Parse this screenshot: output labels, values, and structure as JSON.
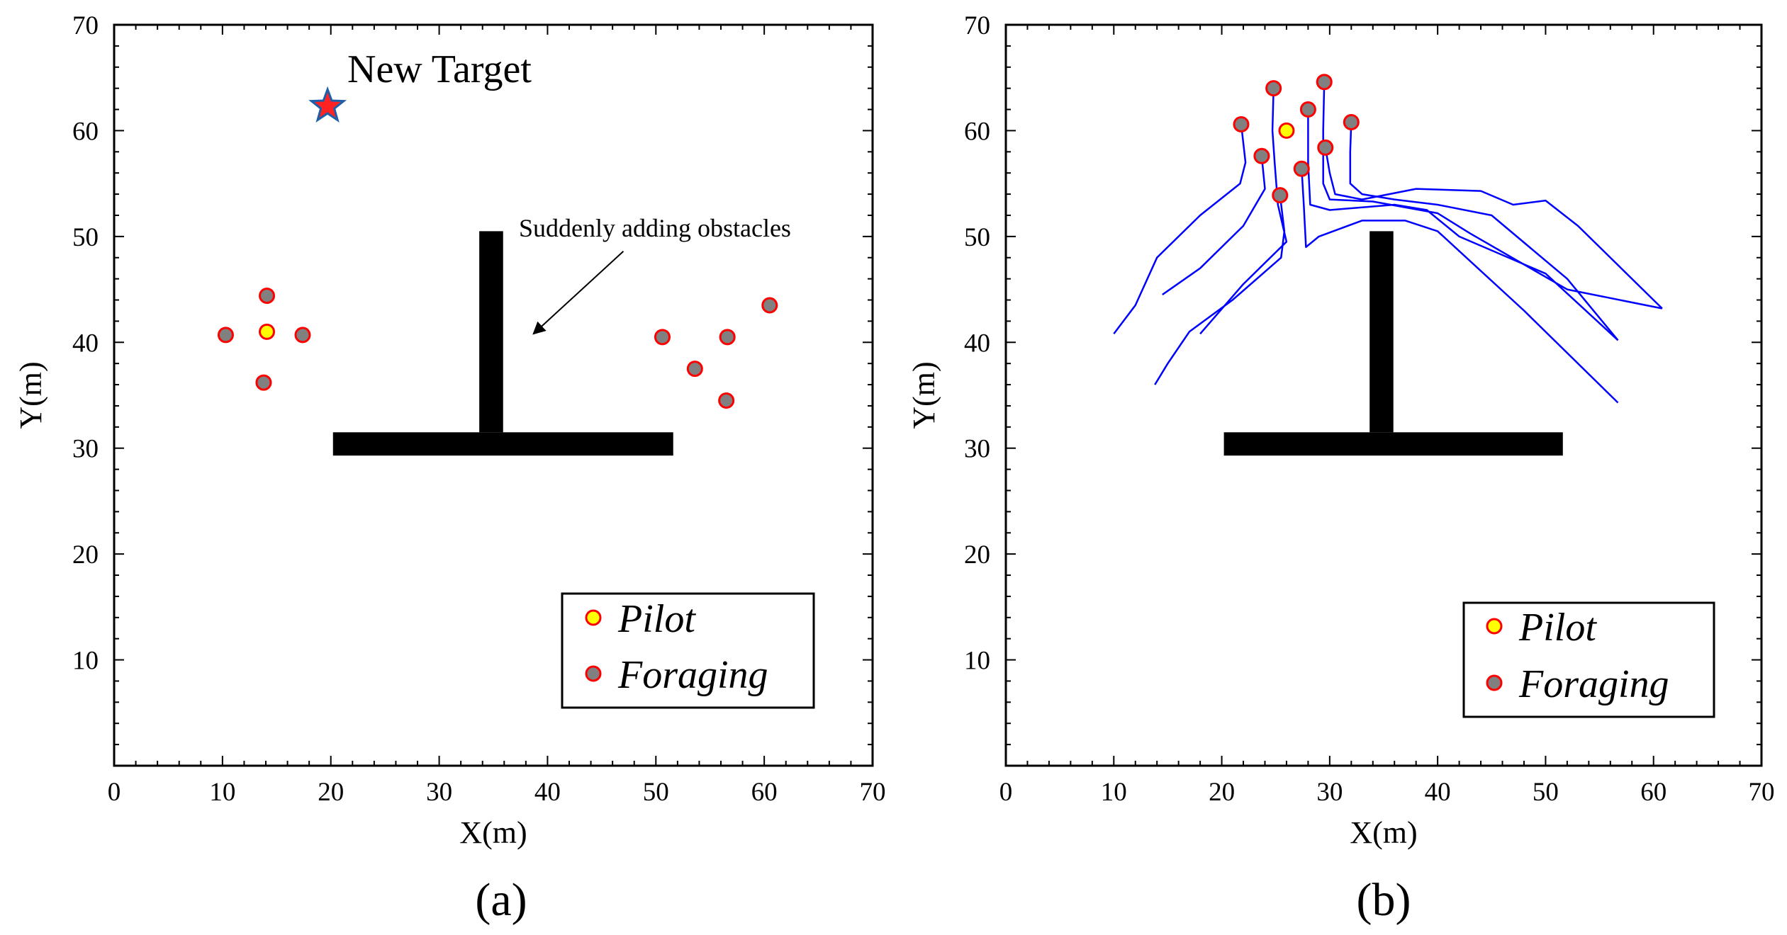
{
  "colors": {
    "pilot_fill": "#ffff00",
    "foraging_fill": "#808080",
    "marker_edge": "#ff0000",
    "path": "#0000ff",
    "obstacle": "#000000",
    "star_fill": "#ff2222",
    "star_edge": "#1f5fa8"
  },
  "chart_data": [
    {
      "type": "scatter",
      "panel_label": "(a)",
      "xlabel": "X(m)",
      "ylabel": "Y(m)",
      "xlim": [
        0,
        70
      ],
      "ylim": [
        0,
        70
      ],
      "xticks": [
        0,
        10,
        20,
        30,
        40,
        50,
        60,
        70
      ],
      "yticks": [
        10,
        20,
        30,
        40,
        50,
        60,
        70
      ],
      "legend": {
        "placement": "bottom-right",
        "entries": [
          "Pilot",
          "Foraging"
        ]
      },
      "obstacles": [
        {
          "name": "vertical-bar",
          "x0": 33.7,
          "x1": 35.9,
          "y0": 31.5,
          "y1": 50.5
        },
        {
          "name": "horizontal-bar",
          "x0": 20.2,
          "x1": 51.6,
          "y0": 29.3,
          "y1": 31.5
        }
      ],
      "target": {
        "label": "New Target",
        "x": 19.7,
        "y": 62.3
      },
      "annotation": {
        "text": "Suddenly adding obstacles",
        "text_at": [
          38.0,
          51.8
        ],
        "arrow_from": [
          47.0,
          48.6
        ],
        "arrow_to": [
          38.7,
          40.8
        ]
      },
      "series": [
        {
          "name": "Pilot",
          "points": [
            [
              14.1,
              41.0
            ]
          ]
        },
        {
          "name": "Foraging",
          "points": [
            [
              10.3,
              40.7
            ],
            [
              14.1,
              44.4
            ],
            [
              17.4,
              40.7
            ],
            [
              13.8,
              36.2
            ],
            [
              50.6,
              40.5
            ],
            [
              53.6,
              37.5
            ],
            [
              56.6,
              40.5
            ],
            [
              60.5,
              43.5
            ],
            [
              56.5,
              34.5
            ]
          ]
        }
      ]
    },
    {
      "type": "line",
      "panel_label": "(b)",
      "xlabel": "X(m)",
      "ylabel": "Y(m)",
      "xlim": [
        0,
        70
      ],
      "ylim": [
        0,
        70
      ],
      "xticks": [
        0,
        10,
        20,
        30,
        40,
        50,
        60,
        70
      ],
      "yticks": [
        10,
        20,
        30,
        40,
        50,
        60,
        70
      ],
      "legend": {
        "placement": "bottom-right",
        "entries": [
          "Pilot",
          "Foraging"
        ]
      },
      "obstacles": [
        {
          "name": "vertical-bar",
          "x0": 33.7,
          "x1": 35.9,
          "y0": 31.5,
          "y1": 50.5
        },
        {
          "name": "horizontal-bar",
          "x0": 20.2,
          "x1": 51.6,
          "y0": 29.3,
          "y1": 31.5
        }
      ],
      "series": [
        {
          "name": "Pilot",
          "points": [
            [
              26.0,
              60.0
            ]
          ]
        },
        {
          "name": "Foraging",
          "points": [
            [
              21.8,
              60.6
            ],
            [
              24.8,
              64.0
            ],
            [
              28.0,
              62.0
            ],
            [
              29.5,
              64.6
            ],
            [
              32.0,
              60.8
            ],
            [
              23.7,
              57.6
            ],
            [
              27.4,
              56.4
            ],
            [
              29.6,
              58.4
            ],
            [
              25.4,
              53.9
            ]
          ]
        }
      ],
      "paths": [
        {
          "name": "path-1",
          "points": [
            [
              21.8,
              60.6
            ],
            [
              22.2,
              57.0
            ],
            [
              21.7,
              55.0
            ],
            [
              18.0,
              52.0
            ],
            [
              14.0,
              48.0
            ],
            [
              12.0,
              43.5
            ],
            [
              10.0,
              40.8
            ]
          ]
        },
        {
          "name": "path-2",
          "points": [
            [
              23.7,
              57.6
            ],
            [
              24.0,
              54.5
            ],
            [
              22.0,
              51.0
            ],
            [
              18.0,
              47.0
            ],
            [
              14.5,
              44.5
            ]
          ]
        },
        {
          "name": "path-3",
          "points": [
            [
              24.8,
              64.0
            ],
            [
              24.7,
              60.0
            ],
            [
              24.9,
              57.0
            ],
            [
              25.2,
              53.0
            ],
            [
              26.0,
              49.5
            ],
            [
              22.0,
              45.5
            ],
            [
              18.0,
              40.8
            ]
          ]
        },
        {
          "name": "path-4",
          "points": [
            [
              25.4,
              53.9
            ],
            [
              25.8,
              50.5
            ],
            [
              25.5,
              48.0
            ],
            [
              21.0,
              44.0
            ],
            [
              17.0,
              41.0
            ],
            [
              15.0,
              38.0
            ],
            [
              13.8,
              36.0
            ]
          ]
        },
        {
          "name": "path-5",
          "points": [
            [
              27.4,
              56.4
            ],
            [
              27.6,
              53.0
            ],
            [
              27.8,
              49.0
            ],
            [
              29.0,
              50.0
            ],
            [
              33.0,
              51.5
            ],
            [
              37.0,
              51.5
            ],
            [
              40.0,
              50.5
            ],
            [
              48.0,
              43.0
            ],
            [
              56.7,
              34.3
            ]
          ]
        },
        {
          "name": "path-6",
          "points": [
            [
              28.0,
              62.0
            ],
            [
              28.0,
              57.0
            ],
            [
              28.2,
              53.0
            ],
            [
              30.0,
              52.5
            ],
            [
              36.0,
              53.0
            ],
            [
              39.0,
              52.5
            ],
            [
              42.0,
              50.0
            ],
            [
              50.0,
              46.5
            ],
            [
              56.7,
              40.2
            ]
          ]
        },
        {
          "name": "path-7",
          "points": [
            [
              29.5,
              64.6
            ],
            [
              29.4,
              60.0
            ],
            [
              29.4,
              55.0
            ],
            [
              30.0,
              53.5
            ],
            [
              34.0,
              53.3
            ],
            [
              40.0,
              52.2
            ],
            [
              43.0,
              50.3
            ],
            [
              52.0,
              45.0
            ],
            [
              60.8,
              43.2
            ]
          ]
        },
        {
          "name": "path-8",
          "points": [
            [
              29.6,
              58.4
            ],
            [
              30.0,
              56.0
            ],
            [
              30.5,
              54.0
            ],
            [
              33.0,
              53.5
            ],
            [
              38.0,
              54.5
            ],
            [
              44.0,
              54.3
            ],
            [
              47.0,
              53.0
            ],
            [
              50.0,
              53.4
            ],
            [
              53.0,
              51.0
            ],
            [
              60.8,
              43.2
            ]
          ]
        },
        {
          "name": "path-9",
          "points": [
            [
              32.0,
              60.8
            ],
            [
              31.9,
              58.0
            ],
            [
              31.9,
              55.0
            ],
            [
              33.0,
              54.0
            ],
            [
              36.0,
              53.5
            ],
            [
              40.0,
              53.0
            ],
            [
              45.0,
              52.0
            ],
            [
              52.0,
              46.0
            ],
            [
              56.7,
              40.2
            ]
          ]
        }
      ]
    }
  ]
}
